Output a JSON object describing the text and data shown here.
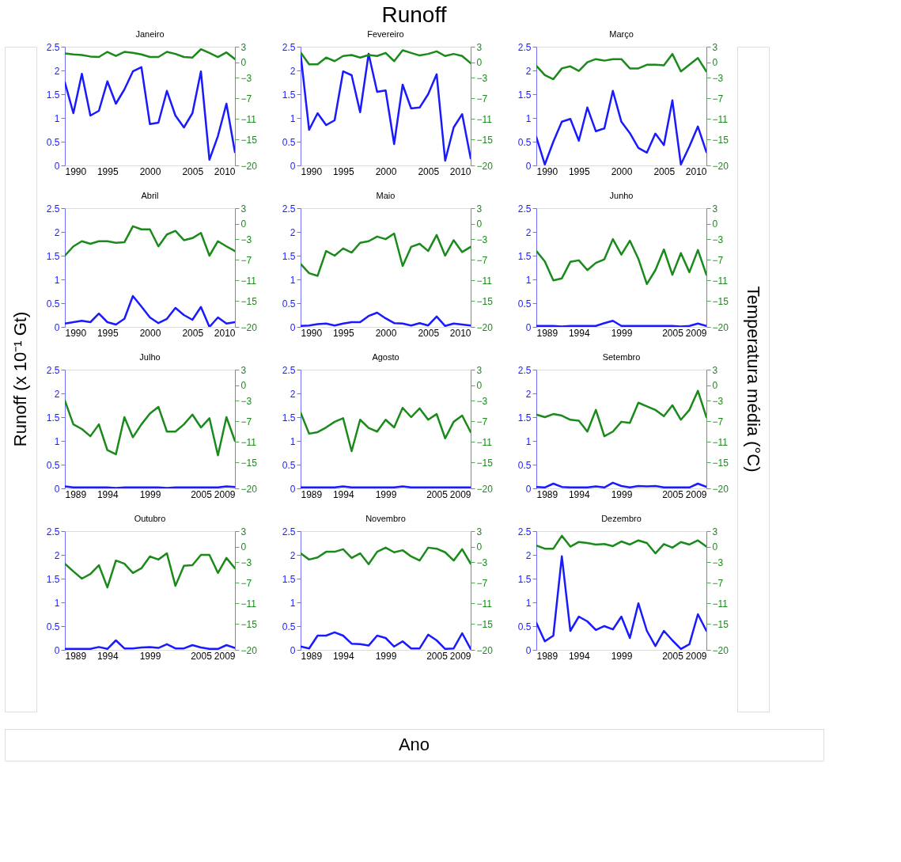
{
  "chart_data": [
    {
      "type": "other",
      "title": "Runoff",
      "xlabel": "Ano",
      "ylabel": "Runoff (x 10⁻¹ Gt)",
      "y2label": "Temperatura média  (°C)"
    },
    {
      "type": "line",
      "title": "Janeiro",
      "x": [
        1990,
        1991,
        1992,
        1993,
        1994,
        1995,
        1996,
        1997,
        1998,
        1999,
        2000,
        2001,
        2002,
        2003,
        2004,
        2005,
        2006,
        2007,
        2008,
        2009,
        2010
      ],
      "xlim": [
        1990,
        2010
      ],
      "xticks": [
        1990,
        1995,
        2000,
        2005,
        2010
      ],
      "ylim": [
        0,
        2.5
      ],
      "yticks": [
        0,
        0.5,
        1,
        1.5,
        2,
        2.5
      ],
      "y2lim": [
        -20,
        3
      ],
      "y2ticks": [
        -20,
        -15,
        -11,
        -7,
        -3,
        0,
        3
      ],
      "series": [
        {
          "color": "#1a1aff",
          "values": [
            1.75,
            1.1,
            1.93,
            1.05,
            1.15,
            1.77,
            1.3,
            1.6,
            1.98,
            2.07,
            0.87,
            0.9,
            1.57,
            1.05,
            0.8,
            1.1,
            1.98,
            0.12,
            0.62,
            1.3,
            0.28
          ]
        },
        {
          "color": "#1a8a1a",
          "axis": "y2",
          "values": [
            1.7,
            1.5,
            1.4,
            1.1,
            1.0,
            2.0,
            1.2,
            2.0,
            1.8,
            1.5,
            1.0,
            1.0,
            2.0,
            1.6,
            1.0,
            0.9,
            2.5,
            1.8,
            1.0,
            1.9,
            0.6
          ]
        }
      ]
    },
    {
      "type": "line",
      "title": "Fevereiro",
      "x": [
        1990,
        1991,
        1992,
        1993,
        1994,
        1995,
        1996,
        1997,
        1998,
        1999,
        2000,
        2001,
        2002,
        2003,
        2004,
        2005,
        2006,
        2007,
        2008,
        2009,
        2010
      ],
      "xlim": [
        1990,
        2010
      ],
      "xticks": [
        1990,
        1995,
        2000,
        2005,
        2010
      ],
      "ylim": [
        0,
        2.5
      ],
      "yticks": [
        0,
        0.5,
        1,
        1.5,
        2,
        2.5
      ],
      "y2lim": [
        -20,
        3
      ],
      "y2ticks": [
        -20,
        -15,
        -11,
        -7,
        -3,
        0,
        3
      ],
      "series": [
        {
          "color": "#1a1aff",
          "values": [
            2.35,
            0.75,
            1.1,
            0.85,
            0.95,
            1.98,
            1.9,
            1.12,
            2.35,
            1.55,
            1.58,
            0.45,
            1.7,
            1.2,
            1.22,
            1.5,
            1.92,
            0.1,
            0.8,
            1.08,
            0.15
          ]
        },
        {
          "color": "#1a8a1a",
          "axis": "y2",
          "values": [
            1.9,
            -0.4,
            -0.4,
            0.9,
            0.2,
            1.2,
            1.4,
            0.9,
            1.4,
            1.2,
            1.8,
            0.2,
            2.3,
            1.8,
            1.3,
            1.6,
            2.1,
            1.2,
            1.6,
            1.2,
            -0.2
          ]
        }
      ]
    },
    {
      "type": "line",
      "title": "Março",
      "x": [
        1990,
        1991,
        1992,
        1993,
        1994,
        1995,
        1996,
        1997,
        1998,
        1999,
        2000,
        2001,
        2002,
        2003,
        2004,
        2005,
        2006,
        2007,
        2008,
        2009,
        2010
      ],
      "xlim": [
        1990,
        2010
      ],
      "xticks": [
        1990,
        1995,
        2000,
        2005,
        2010
      ],
      "ylim": [
        0,
        2.5
      ],
      "yticks": [
        0,
        0.5,
        1,
        1.5,
        2,
        2.5
      ],
      "y2lim": [
        -20,
        3
      ],
      "y2ticks": [
        -20,
        -15,
        -11,
        -7,
        -3,
        0,
        3
      ],
      "series": [
        {
          "color": "#1a1aff",
          "values": [
            0.6,
            0.02,
            0.5,
            0.92,
            0.98,
            0.52,
            1.22,
            0.72,
            0.78,
            1.57,
            0.92,
            0.68,
            0.37,
            0.27,
            0.67,
            0.43,
            1.37,
            0.02,
            0.4,
            0.82,
            0.28
          ]
        },
        {
          "color": "#1a8a1a",
          "axis": "y2",
          "values": [
            -0.7,
            -2.5,
            -3.3,
            -1.2,
            -0.8,
            -1.7,
            0,
            0.6,
            0.3,
            0.6,
            0.6,
            -1.2,
            -1.2,
            -0.5,
            -0.5,
            -0.6,
            1.6,
            -1.8,
            -0.5,
            0.8,
            -1.8
          ]
        }
      ]
    },
    {
      "type": "line",
      "title": "Abril",
      "x": [
        1990,
        1991,
        1992,
        1993,
        1994,
        1995,
        1996,
        1997,
        1998,
        1999,
        2000,
        2001,
        2002,
        2003,
        2004,
        2005,
        2006,
        2007,
        2008,
        2009,
        2010
      ],
      "xlim": [
        1990,
        2010
      ],
      "xticks": [
        1990,
        1995,
        2000,
        2005,
        2010
      ],
      "ylim": [
        0,
        2.5
      ],
      "yticks": [
        0,
        0.5,
        1,
        1.5,
        2,
        2.5
      ],
      "y2lim": [
        -20,
        3
      ],
      "y2ticks": [
        -20,
        -15,
        -11,
        -7,
        -3,
        0,
        3
      ],
      "series": [
        {
          "color": "#1a1aff",
          "values": [
            0.07,
            0.1,
            0.13,
            0.1,
            0.28,
            0.1,
            0.05,
            0.17,
            0.65,
            0.43,
            0.2,
            0.08,
            0.17,
            0.4,
            0.25,
            0.15,
            0.42,
            0.0,
            0.2,
            0.07,
            0.1
          ]
        },
        {
          "color": "#1a8a1a",
          "axis": "y2",
          "values": [
            -6.2,
            -4.4,
            -3.4,
            -3.9,
            -3.4,
            -3.4,
            -3.7,
            -3.6,
            -0.5,
            -1.1,
            -1.1,
            -4.4,
            -2.1,
            -1.4,
            -3.2,
            -2.8,
            -1.8,
            -6.2,
            -3.4,
            -4.4,
            -5.3
          ]
        }
      ]
    },
    {
      "type": "line",
      "title": "Maio",
      "x": [
        1990,
        1991,
        1992,
        1993,
        1994,
        1995,
        1996,
        1997,
        1998,
        1999,
        2000,
        2001,
        2002,
        2003,
        2004,
        2005,
        2006,
        2007,
        2008,
        2009,
        2010
      ],
      "xlim": [
        1990,
        2010
      ],
      "xticks": [
        1990,
        1995,
        2000,
        2005,
        2010
      ],
      "ylim": [
        0,
        2.5
      ],
      "yticks": [
        0,
        0.5,
        1,
        1.5,
        2,
        2.5
      ],
      "y2lim": [
        -20,
        3
      ],
      "y2ticks": [
        -20,
        -15,
        -11,
        -7,
        -3,
        0,
        3
      ],
      "series": [
        {
          "color": "#1a1aff",
          "values": [
            0.02,
            0.03,
            0.06,
            0.07,
            0.03,
            0.07,
            0.1,
            0.1,
            0.23,
            0.3,
            0.18,
            0.08,
            0.07,
            0.03,
            0.08,
            0.03,
            0.22,
            0.02,
            0.07,
            0.05,
            0.03
          ]
        },
        {
          "color": "#1a8a1a",
          "axis": "y2",
          "values": [
            -7.8,
            -9.6,
            -10.1,
            -5.3,
            -6.2,
            -4.8,
            -5.6,
            -3.7,
            -3.4,
            -2.5,
            -3.0,
            -1.9,
            -8.2,
            -4.5,
            -3.9,
            -5.3,
            -2.2,
            -6.2,
            -3.2,
            -5.5,
            -4.5
          ]
        }
      ]
    },
    {
      "type": "line",
      "title": "Junho",
      "x": [
        1989,
        1990,
        1991,
        1992,
        1993,
        1994,
        1995,
        1996,
        1997,
        1998,
        1999,
        2000,
        2001,
        2002,
        2003,
        2004,
        2005,
        2006,
        2007,
        2008,
        2009
      ],
      "xlim": [
        1989,
        2009
      ],
      "xticks": [
        1989,
        1994,
        1999,
        2005,
        2009
      ],
      "ylim": [
        0,
        2.5
      ],
      "yticks": [
        0,
        0.5,
        1,
        1.5,
        2,
        2.5
      ],
      "y2lim": [
        -20,
        3
      ],
      "y2ticks": [
        -20,
        -15,
        -11,
        -7,
        -3,
        0,
        3
      ],
      "series": [
        {
          "color": "#1a1aff",
          "values": [
            0.02,
            0.02,
            0.02,
            0.01,
            0.02,
            0.02,
            0.02,
            0.02,
            0.08,
            0.13,
            0.02,
            0.02,
            0.02,
            0.02,
            0.02,
            0.02,
            0.02,
            0.01,
            0.02,
            0.07,
            0.02
          ]
        },
        {
          "color": "#1a8a1a",
          "axis": "y2",
          "values": [
            -5.3,
            -7.3,
            -11.0,
            -10.6,
            -7.4,
            -7.1,
            -9.0,
            -7.6,
            -6.9,
            -3.0,
            -6.0,
            -3.3,
            -6.8,
            -11.7,
            -9.0,
            -5.0,
            -9.9,
            -5.7,
            -9.4,
            -5.1,
            -9.9
          ]
        }
      ]
    },
    {
      "type": "line",
      "title": "Julho",
      "x": [
        1989,
        1990,
        1991,
        1992,
        1993,
        1994,
        1995,
        1996,
        1997,
        1998,
        1999,
        2000,
        2001,
        2002,
        2003,
        2004,
        2005,
        2006,
        2007,
        2008,
        2009
      ],
      "xlim": [
        1989,
        2009
      ],
      "xticks": [
        1989,
        1994,
        1999,
        2005,
        2009
      ],
      "ylim": [
        0,
        2.5
      ],
      "yticks": [
        0,
        0.5,
        1,
        1.5,
        2,
        2.5
      ],
      "y2lim": [
        -20,
        3
      ],
      "y2ticks": [
        -20,
        -15,
        -11,
        -7,
        -3,
        0,
        3
      ],
      "series": [
        {
          "color": "#1a1aff",
          "values": [
            0.04,
            0.02,
            0.02,
            0.02,
            0.02,
            0.02,
            0.01,
            0.02,
            0.02,
            0.02,
            0.02,
            0.02,
            0.01,
            0.02,
            0.02,
            0.02,
            0.02,
            0.02,
            0.02,
            0.04,
            0.03
          ]
        },
        {
          "color": "#1a8a1a",
          "axis": "y2",
          "values": [
            -3.0,
            -7.6,
            -8.5,
            -9.9,
            -7.6,
            -12.6,
            -13.4,
            -6.2,
            -10.1,
            -7.6,
            -5.5,
            -4.2,
            -9.0,
            -9.0,
            -7.6,
            -5.7,
            -8.2,
            -6.4,
            -13.6,
            -6.2,
            -10.8
          ]
        }
      ]
    },
    {
      "type": "line",
      "title": "Agosto",
      "x": [
        1989,
        1990,
        1991,
        1992,
        1993,
        1994,
        1995,
        1996,
        1997,
        1998,
        1999,
        2000,
        2001,
        2002,
        2003,
        2004,
        2005,
        2006,
        2007,
        2008,
        2009
      ],
      "xlim": [
        1989,
        2009
      ],
      "xticks": [
        1989,
        1994,
        1999,
        2005,
        2009
      ],
      "ylim": [
        0,
        2.5
      ],
      "yticks": [
        0,
        0.5,
        1,
        1.5,
        2,
        2.5
      ],
      "y2lim": [
        -20,
        3
      ],
      "y2ticks": [
        -20,
        -15,
        -11,
        -7,
        -3,
        0,
        3
      ],
      "series": [
        {
          "color": "#1a1aff",
          "values": [
            0.02,
            0.02,
            0.02,
            0.02,
            0.02,
            0.04,
            0.02,
            0.02,
            0.02,
            0.02,
            0.02,
            0.02,
            0.04,
            0.02,
            0.02,
            0.02,
            0.02,
            0.02,
            0.02,
            0.02,
            0.02
          ]
        },
        {
          "color": "#1a8a1a",
          "axis": "y2",
          "values": [
            -5.3,
            -9.4,
            -9.1,
            -8.2,
            -7.1,
            -6.4,
            -12.8,
            -6.7,
            -8.3,
            -9.0,
            -6.7,
            -8.2,
            -4.4,
            -6.2,
            -4.5,
            -6.7,
            -5.6,
            -10.3,
            -7.1,
            -5.9,
            -9.1
          ]
        }
      ]
    },
    {
      "type": "line",
      "title": "Setembro",
      "x": [
        1989,
        1990,
        1991,
        1992,
        1993,
        1994,
        1995,
        1996,
        1997,
        1998,
        1999,
        2000,
        2001,
        2002,
        2003,
        2004,
        2005,
        2006,
        2007,
        2008,
        2009
      ],
      "xlim": [
        1989,
        2009
      ],
      "xticks": [
        1989,
        1994,
        1999,
        2005,
        2009
      ],
      "ylim": [
        0,
        2.5
      ],
      "yticks": [
        0,
        0.5,
        1,
        1.5,
        2,
        2.5
      ],
      "y2lim": [
        -20,
        3
      ],
      "y2ticks": [
        -20,
        -15,
        -11,
        -7,
        -3,
        0,
        3
      ],
      "series": [
        {
          "color": "#1a1aff",
          "values": [
            0.03,
            0.02,
            0.1,
            0.03,
            0.02,
            0.02,
            0.02,
            0.04,
            0.02,
            0.12,
            0.05,
            0.02,
            0.05,
            0.04,
            0.05,
            0.02,
            0.02,
            0.02,
            0.02,
            0.1,
            0.03
          ]
        },
        {
          "color": "#1a8a1a",
          "axis": "y2",
          "values": [
            -5.7,
            -6.2,
            -5.6,
            -5.9,
            -6.7,
            -6.9,
            -9.0,
            -4.8,
            -9.9,
            -9.0,
            -7.1,
            -7.3,
            -3.4,
            -4.1,
            -4.8,
            -6.0,
            -3.9,
            -6.7,
            -4.8,
            -1.1,
            -6.2
          ]
        }
      ]
    },
    {
      "type": "line",
      "title": "Outubro",
      "x": [
        1989,
        1990,
        1991,
        1992,
        1993,
        1994,
        1995,
        1996,
        1997,
        1998,
        1999,
        2000,
        2001,
        2002,
        2003,
        2004,
        2005,
        2006,
        2007,
        2008,
        2009
      ],
      "xlim": [
        1989,
        2009
      ],
      "xticks": [
        1989,
        1994,
        1999,
        2005,
        2009
      ],
      "ylim": [
        0,
        2.5
      ],
      "yticks": [
        0,
        0.5,
        1,
        1.5,
        2,
        2.5
      ],
      "y2lim": [
        -20,
        3
      ],
      "y2ticks": [
        -20,
        -15,
        -11,
        -7,
        -3,
        0,
        3
      ],
      "series": [
        {
          "color": "#1a1aff",
          "values": [
            0.02,
            0.02,
            0.02,
            0.02,
            0.06,
            0.02,
            0.2,
            0.03,
            0.03,
            0.05,
            0.06,
            0.04,
            0.12,
            0.03,
            0.03,
            0.1,
            0.05,
            0.02,
            0.02,
            0.1,
            0.04
          ]
        },
        {
          "color": "#1a8a1a",
          "axis": "y2",
          "values": [
            -3.3,
            -4.8,
            -6.2,
            -5.3,
            -3.6,
            -7.9,
            -2.7,
            -3.3,
            -5.1,
            -4.2,
            -1.9,
            -2.5,
            -1.3,
            -7.6,
            -3.7,
            -3.6,
            -1.6,
            -1.6,
            -5.1,
            -2.2,
            -4.2
          ]
        }
      ]
    },
    {
      "type": "line",
      "title": "Novembro",
      "x": [
        1989,
        1990,
        1991,
        1992,
        1993,
        1994,
        1995,
        1996,
        1997,
        1998,
        1999,
        2000,
        2001,
        2002,
        2003,
        2004,
        2005,
        2006,
        2007,
        2008,
        2009
      ],
      "xlim": [
        1989,
        2009
      ],
      "xticks": [
        1989,
        1994,
        1999,
        2005,
        2009
      ],
      "ylim": [
        0,
        2.5
      ],
      "yticks": [
        0,
        0.5,
        1,
        1.5,
        2,
        2.5
      ],
      "y2lim": [
        -20,
        3
      ],
      "y2ticks": [
        -20,
        -15,
        -11,
        -7,
        -3,
        0,
        3
      ],
      "series": [
        {
          "color": "#1a1aff",
          "values": [
            0.07,
            0.03,
            0.3,
            0.3,
            0.37,
            0.3,
            0.13,
            0.12,
            0.09,
            0.3,
            0.25,
            0.07,
            0.18,
            0.03,
            0.03,
            0.32,
            0.2,
            0.02,
            0.03,
            0.35,
            0.02
          ]
        },
        {
          "color": "#1a8a1a",
          "axis": "y2",
          "values": [
            -1.3,
            -2.5,
            -2.1,
            -1.0,
            -1.0,
            -0.5,
            -2.2,
            -1.3,
            -3.4,
            -1.0,
            -0.2,
            -1.1,
            -0.7,
            -1.9,
            -2.7,
            -0.2,
            -0.4,
            -1.1,
            -2.7,
            -0.5,
            -3.3
          ]
        }
      ]
    },
    {
      "type": "line",
      "title": "Dezembro",
      "x": [
        1989,
        1990,
        1991,
        1992,
        1993,
        1994,
        1995,
        1996,
        1997,
        1998,
        1999,
        2000,
        2001,
        2002,
        2003,
        2004,
        2005,
        2006,
        2007,
        2008,
        2009
      ],
      "xlim": [
        1989,
        2009
      ],
      "xticks": [
        1989,
        1994,
        1999,
        2005,
        2009
      ],
      "ylim": [
        0,
        2.5
      ],
      "yticks": [
        0,
        0.5,
        1,
        1.5,
        2,
        2.5
      ],
      "y2lim": [
        -20,
        3
      ],
      "y2ticks": [
        -20,
        -15,
        -11,
        -7,
        -3,
        0,
        3
      ],
      "series": [
        {
          "color": "#1a1aff",
          "values": [
            0.57,
            0.18,
            0.3,
            1.97,
            0.4,
            0.7,
            0.6,
            0.42,
            0.5,
            0.43,
            0.7,
            0.25,
            0.98,
            0.4,
            0.08,
            0.4,
            0.2,
            0.02,
            0.12,
            0.75,
            0.4
          ]
        },
        {
          "color": "#1a8a1a",
          "axis": "y2",
          "values": [
            0.2,
            -0.4,
            -0.4,
            2.1,
            0.0,
            0.9,
            0.7,
            0.4,
            0.5,
            0.1,
            1.0,
            0.4,
            1.2,
            0.7,
            -1.3,
            0.5,
            -0.2,
            0.9,
            0.4,
            1.2,
            0.0
          ]
        }
      ]
    }
  ]
}
